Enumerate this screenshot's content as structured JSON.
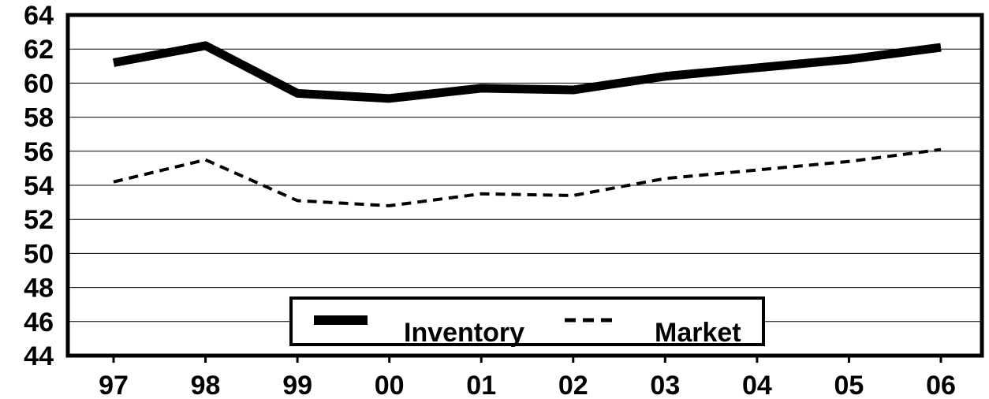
{
  "chart_data": {
    "type": "line",
    "title": "",
    "xlabel": "",
    "ylabel": "",
    "categories": [
      "97",
      "98",
      "99",
      "00",
      "01",
      "02",
      "03",
      "04",
      "05",
      "06"
    ],
    "y_ticks": [
      "44",
      "46",
      "48",
      "50",
      "52",
      "54",
      "56",
      "58",
      "60",
      "62",
      "64"
    ],
    "ylim": [
      44,
      64
    ],
    "grid": true,
    "legend_position": "bottom-center",
    "series": [
      {
        "name": "Inventory",
        "style": "solid-thick",
        "color": "#000000",
        "values": [
          61.2,
          62.2,
          59.4,
          59.1,
          59.7,
          59.6,
          60.4,
          60.9,
          61.4,
          62.1
        ]
      },
      {
        "name": "Market",
        "style": "dashed",
        "color": "#000000",
        "values": [
          54.2,
          55.5,
          53.1,
          52.8,
          53.5,
          53.4,
          54.4,
          54.9,
          55.4,
          56.1
        ]
      }
    ]
  }
}
